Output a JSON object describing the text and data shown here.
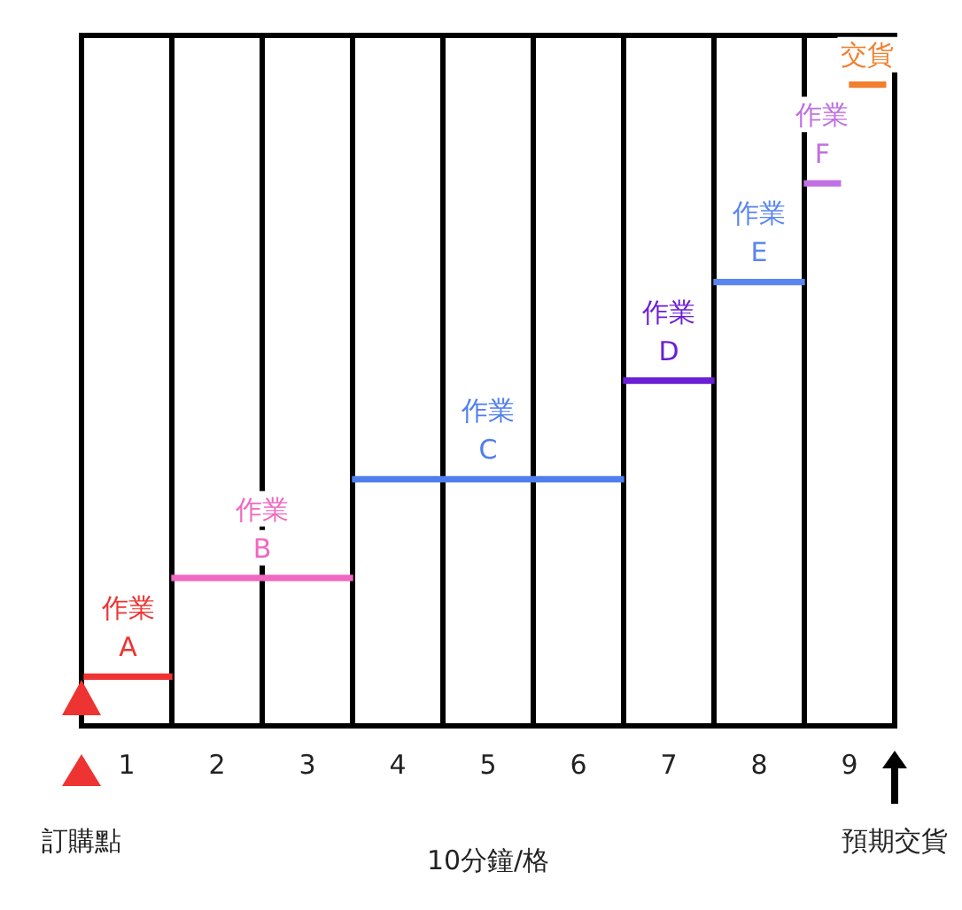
{
  "chart_data": {
    "type": "bar",
    "orientation": "horizontal",
    "xlabel": "10分鐘/格",
    "categories": [
      "交貨",
      "作業 F",
      "作業 E",
      "作業 D",
      "作業 C",
      "作業 B",
      "作業 A"
    ],
    "base": [
      8.5,
      8,
      7,
      6,
      3,
      1,
      0
    ],
    "values": [
      0.4,
      0.4,
      1,
      1,
      3,
      2,
      1
    ],
    "colors": [
      "#f08030",
      "#c070e0",
      "#5a86f0",
      "#6a1fd6",
      "#4f7fef",
      "#f068c0",
      "#ee3333"
    ],
    "xlim": [
      0,
      9
    ],
    "xticks": [
      {
        "value": 0,
        "label": null
      },
      {
        "value": 0.5,
        "label": "1"
      },
      {
        "value": 1,
        "label": null
      },
      {
        "value": 1.5,
        "label": "2"
      },
      {
        "value": 2,
        "label": null
      },
      {
        "value": 2.5,
        "label": "3"
      },
      {
        "value": 3,
        "label": null
      },
      {
        "value": 3.5,
        "label": "4"
      },
      {
        "value": 4,
        "label": null
      },
      {
        "value": 4.5,
        "label": "5"
      },
      {
        "value": 5,
        "label": null
      },
      {
        "value": 5.5,
        "label": "6"
      },
      {
        "value": 6,
        "label": null
      },
      {
        "value": 6.5,
        "label": "7"
      },
      {
        "value": 7,
        "label": null
      },
      {
        "value": 7.5,
        "label": "8"
      },
      {
        "value": 8,
        "label": null
      },
      {
        "value": 8.5,
        "label": "9"
      },
      {
        "value": 9,
        "label": null
      }
    ],
    "grid": "x",
    "tick_labels": "x",
    "legend": false,
    "annotations": [
      "訂購點",
      "預期交貨"
    ]
  }
}
